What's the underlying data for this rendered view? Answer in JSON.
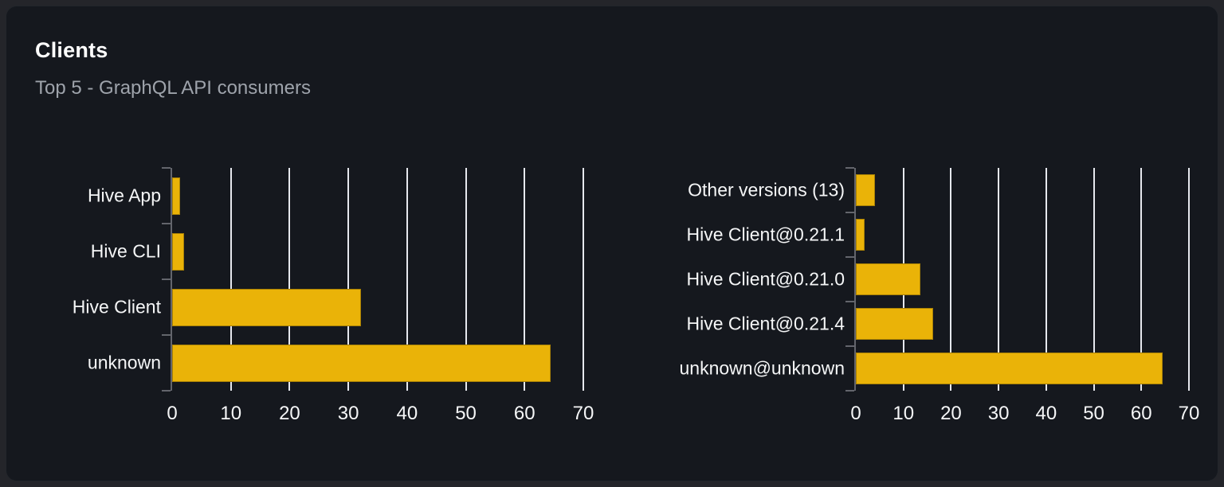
{
  "card": {
    "title": "Clients",
    "subtitle": "Top 5 - GraphQL API consumers"
  },
  "colors": {
    "bar": "#eab308",
    "bar_stroke": "rgba(0,0,0,0.28)",
    "grid": "#e6e8ee",
    "axis": "#63656c",
    "card_bg": "#15181e",
    "page_bg": "#24252a",
    "label_text": "#f5f6f7",
    "subtitle_text": "#9ea3ab"
  },
  "chart_data": [
    {
      "type": "bar",
      "orientation": "horizontal",
      "name": "clients",
      "categories": [
        "Hive App",
        "Hive CLI",
        "Hive Client",
        "unknown"
      ],
      "values": [
        1.4,
        2.1,
        32.2,
        64.4
      ],
      "x_ticks": [
        0,
        10,
        20,
        30,
        40,
        50,
        60,
        70
      ],
      "xlim": [
        0,
        70
      ],
      "grid": true,
      "legend": "none"
    },
    {
      "type": "bar",
      "orientation": "horizontal",
      "name": "client-versions",
      "categories": [
        "Other versions (13)",
        "Hive Client@0.21.1",
        "Hive Client@0.21.0",
        "Hive Client@0.21.4",
        "unknown@unknown"
      ],
      "values": [
        4.0,
        1.8,
        13.5,
        16.2,
        64.4
      ],
      "x_ticks": [
        0,
        10,
        20,
        30,
        40,
        50,
        60,
        70
      ],
      "xlim": [
        0,
        70
      ],
      "grid": true,
      "legend": "none"
    }
  ]
}
